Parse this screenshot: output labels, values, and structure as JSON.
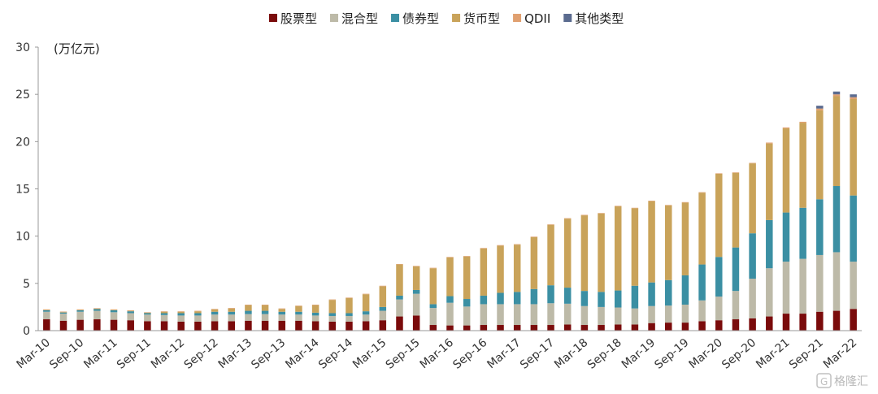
{
  "chart_data": {
    "type": "bar",
    "stacked": true,
    "title": "",
    "ylabel": "(万亿元)",
    "xlabel": "",
    "ylim": [
      0,
      30
    ],
    "yticks": [
      "0",
      "5",
      "10",
      "15",
      "20",
      "25",
      "30"
    ],
    "legend_position": "top-center",
    "grid": false,
    "x_tick_labels": [
      "Mar-10",
      "Sep-10",
      "Mar-11",
      "Sep-11",
      "Mar-12",
      "Sep-12",
      "Mar-13",
      "Sep-13",
      "Mar-14",
      "Sep-14",
      "Mar-15",
      "Sep-15",
      "Mar-16",
      "Sep-16",
      "Mar-17",
      "Sep-17",
      "Mar-18",
      "Sep-18",
      "Mar-19",
      "Sep-19",
      "Mar-20",
      "Sep-20",
      "Mar-21",
      "Sep-21",
      "Mar-22"
    ],
    "categories": [
      "Mar-10",
      "Jun-10",
      "Sep-10",
      "Dec-10",
      "Mar-11",
      "Jun-11",
      "Sep-11",
      "Dec-11",
      "Mar-12",
      "Jun-12",
      "Sep-12",
      "Dec-12",
      "Mar-13",
      "Jun-13",
      "Sep-13",
      "Dec-13",
      "Mar-14",
      "Jun-14",
      "Sep-14",
      "Dec-14",
      "Mar-15",
      "Jun-15",
      "Sep-15",
      "Dec-15",
      "Mar-16",
      "Jun-16",
      "Sep-16",
      "Dec-16",
      "Mar-17",
      "Jun-17",
      "Sep-17",
      "Dec-17",
      "Mar-18",
      "Jun-18",
      "Sep-18",
      "Dec-18",
      "Mar-19",
      "Jun-19",
      "Sep-19",
      "Dec-19",
      "Mar-20",
      "Jun-20",
      "Sep-20",
      "Dec-20",
      "Mar-21",
      "Jun-21",
      "Sep-21",
      "Dec-21",
      "Mar-22"
    ],
    "series": [
      {
        "name": "股票型",
        "color": "#7a0b0b",
        "values": [
          1.2,
          1.05,
          1.15,
          1.2,
          1.15,
          1.1,
          1.0,
          1.0,
          0.95,
          0.95,
          1.0,
          1.0,
          1.05,
          1.05,
          1.05,
          1.05,
          1.0,
          0.95,
          0.95,
          1.0,
          1.1,
          1.5,
          1.6,
          0.6,
          0.55,
          0.55,
          0.6,
          0.6,
          0.6,
          0.6,
          0.6,
          0.65,
          0.6,
          0.6,
          0.65,
          0.65,
          0.8,
          0.85,
          0.85,
          1.0,
          1.1,
          1.2,
          1.3,
          1.5,
          1.8,
          1.8,
          2.0,
          2.1,
          2.3
        ]
      },
      {
        "name": "混合型",
        "color": "#bdbaa8",
        "values": [
          0.8,
          0.75,
          0.85,
          0.9,
          0.8,
          0.75,
          0.7,
          0.65,
          0.65,
          0.65,
          0.7,
          0.7,
          0.7,
          0.7,
          0.65,
          0.65,
          0.6,
          0.6,
          0.6,
          0.7,
          1.0,
          1.8,
          2.3,
          1.8,
          2.4,
          2.0,
          2.2,
          2.2,
          2.2,
          2.2,
          2.3,
          2.2,
          2.0,
          1.9,
          1.8,
          1.7,
          1.8,
          1.8,
          1.9,
          2.2,
          2.5,
          3.0,
          4.2,
          5.1,
          5.5,
          5.8,
          6.0,
          6.2,
          5.0
        ]
      },
      {
        "name": "债券型",
        "color": "#3b8fa3",
        "values": [
          0.15,
          0.12,
          0.15,
          0.18,
          0.2,
          0.2,
          0.15,
          0.2,
          0.25,
          0.25,
          0.3,
          0.3,
          0.35,
          0.35,
          0.3,
          0.3,
          0.3,
          0.3,
          0.3,
          0.35,
          0.4,
          0.4,
          0.4,
          0.4,
          0.7,
          0.8,
          0.9,
          1.2,
          1.3,
          1.6,
          1.9,
          1.7,
          1.6,
          1.6,
          1.8,
          2.4,
          2.5,
          2.7,
          3.1,
          3.8,
          4.2,
          4.6,
          4.8,
          5.1,
          5.2,
          5.4,
          5.9,
          7.0,
          7.0
        ]
      },
      {
        "name": "货币型",
        "color": "#c9a35a",
        "values": [
          0.05,
          0.05,
          0.05,
          0.05,
          0.05,
          0.05,
          0.05,
          0.15,
          0.15,
          0.2,
          0.25,
          0.35,
          0.6,
          0.6,
          0.3,
          0.6,
          0.8,
          1.4,
          1.6,
          1.8,
          2.2,
          3.3,
          2.5,
          3.8,
          4.1,
          4.5,
          5.0,
          5.0,
          5.0,
          5.5,
          6.4,
          7.3,
          8.0,
          8.3,
          8.9,
          8.2,
          8.6,
          7.9,
          7.7,
          7.6,
          8.8,
          7.9,
          7.4,
          8.1,
          8.9,
          9.0,
          9.4,
          9.5,
          10.2
        ]
      },
      {
        "name": "QDII",
        "color": "#e0a070",
        "values": [
          0.05,
          0.05,
          0.05,
          0.05,
          0.05,
          0.05,
          0.05,
          0.05,
          0.05,
          0.05,
          0.05,
          0.05,
          0.05,
          0.05,
          0.05,
          0.05,
          0.05,
          0.05,
          0.05,
          0.05,
          0.05,
          0.05,
          0.05,
          0.05,
          0.05,
          0.05,
          0.05,
          0.05,
          0.05,
          0.05,
          0.05,
          0.05,
          0.05,
          0.05,
          0.05,
          0.05,
          0.05,
          0.05,
          0.05,
          0.05,
          0.05,
          0.05,
          0.05,
          0.1,
          0.1,
          0.1,
          0.2,
          0.2,
          0.2
        ]
      },
      {
        "name": "其他类型",
        "color": "#5b6b8f",
        "values": [
          0,
          0,
          0,
          0,
          0,
          0,
          0,
          0,
          0,
          0,
          0,
          0,
          0,
          0,
          0,
          0,
          0,
          0,
          0,
          0,
          0,
          0,
          0,
          0,
          0,
          0,
          0,
          0,
          0,
          0,
          0,
          0,
          0,
          0,
          0,
          0,
          0,
          0,
          0,
          0,
          0,
          0,
          0,
          0,
          0,
          0,
          0.3,
          0.3,
          0.3
        ]
      }
    ]
  },
  "watermark": {
    "text": "格隆汇",
    "icon": "gelonghui-logo-icon"
  }
}
